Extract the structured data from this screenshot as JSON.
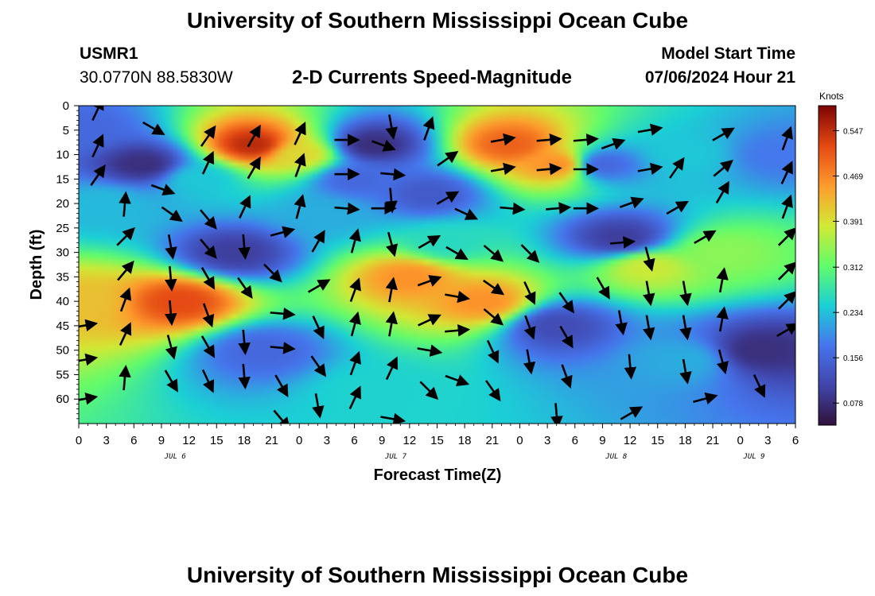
{
  "page": {
    "title": "University of Southern Mississippi Ocean Cube",
    "station": "USMR1",
    "coords": "30.0770N  88.5830W",
    "subtitle": "2-D Currents Speed-Magnitude",
    "model_start_label": "Model Start Time",
    "model_start_value": "07/06/2024 Hour 21",
    "footer_title": "University of Southern Mississippi Ocean Cube"
  },
  "chart_data": {
    "type": "heatmap",
    "title": "2-D Currents Speed-Magnitude",
    "xlabel": "Forecast Time(Z)",
    "ylabel": "Depth (ft)",
    "colorbar_label": "Knots",
    "colorbar_ticks": [
      "0.547",
      "0.469",
      "0.391",
      "0.312",
      "0.234",
      "0.156",
      "0.078"
    ],
    "colorbar_values": [
      0.547,
      0.469,
      0.391,
      0.312,
      0.234,
      0.156,
      0.078
    ],
    "colorbar_range": [
      0.04,
      0.59
    ],
    "colors": [
      "#30123b",
      "#4145ab",
      "#4675ed",
      "#1bd0d5",
      "#62fc6b",
      "#d2e935",
      "#fe9b2d",
      "#e54813",
      "#7a0403"
    ],
    "x_tick_labels": [
      "0",
      "3",
      "6",
      "9",
      "12",
      "15",
      "18",
      "21",
      "0",
      "3",
      "6",
      "9",
      "12",
      "15",
      "18",
      "21",
      "0",
      "3",
      "6",
      "9",
      "12",
      "15",
      "18",
      "21",
      "0",
      "3",
      "6"
    ],
    "x_range_hours": [
      0,
      78
    ],
    "date_labels": [
      {
        "text": "JUL 6",
        "hour": 10.5
      },
      {
        "text": "JUL 7",
        "hour": 34.5
      },
      {
        "text": "JUL 8",
        "hour": 58.5
      },
      {
        "text": "JUL 9",
        "hour": 73.5
      }
    ],
    "y_tick_labels": [
      "0",
      "5",
      "10",
      "15",
      "20",
      "25",
      "30",
      "35",
      "40",
      "45",
      "50",
      "55",
      "60"
    ],
    "y_range_ft": [
      0,
      65
    ],
    "grid": false,
    "legend": "right colorbar",
    "speed_field": [
      {
        "hour": 0,
        "depth": 5,
        "speed": 0.16
      },
      {
        "hour": 3,
        "depth": 20,
        "speed": 0.23
      },
      {
        "hour": 0,
        "depth": 40,
        "speed": 0.42
      },
      {
        "hour": 7,
        "depth": 12,
        "speed": 0.08
      },
      {
        "hour": 11,
        "depth": 40,
        "speed": 0.52
      },
      {
        "hour": 13,
        "depth": 15,
        "speed": 0.24
      },
      {
        "hour": 17,
        "depth": 30,
        "speed": 0.1
      },
      {
        "hour": 19,
        "depth": 8,
        "speed": 0.55
      },
      {
        "hour": 24,
        "depth": 10,
        "speed": 0.4
      },
      {
        "hour": 20,
        "depth": 50,
        "speed": 0.16
      },
      {
        "hour": 27,
        "depth": 22,
        "speed": 0.22
      },
      {
        "hour": 30,
        "depth": 15,
        "speed": 0.16
      },
      {
        "hour": 32,
        "depth": 8,
        "speed": 0.08
      },
      {
        "hour": 36,
        "depth": 35,
        "speed": 0.46
      },
      {
        "hour": 38,
        "depth": 18,
        "speed": 0.14
      },
      {
        "hour": 32,
        "depth": 58,
        "speed": 0.25
      },
      {
        "hour": 40,
        "depth": 28,
        "speed": 0.26
      },
      {
        "hour": 44,
        "depth": 40,
        "speed": 0.46
      },
      {
        "hour": 47,
        "depth": 8,
        "speed": 0.5
      },
      {
        "hour": 52,
        "depth": 12,
        "speed": 0.46
      },
      {
        "hour": 52,
        "depth": 45,
        "speed": 0.12
      },
      {
        "hour": 57,
        "depth": 12,
        "speed": 0.16
      },
      {
        "hour": 59,
        "depth": 27,
        "speed": 0.1
      },
      {
        "hour": 62,
        "depth": 33,
        "speed": 0.38
      },
      {
        "hour": 66,
        "depth": 10,
        "speed": 0.24
      },
      {
        "hour": 66,
        "depth": 52,
        "speed": 0.22
      },
      {
        "hour": 74,
        "depth": 50,
        "speed": 0.08
      },
      {
        "hour": 76,
        "depth": 10,
        "speed": 0.18
      },
      {
        "hour": 70,
        "depth": 30,
        "speed": 0.34
      }
    ],
    "vectors": [
      {
        "hour": 2,
        "depth": 1.0,
        "angle": 25
      },
      {
        "hour": 2,
        "depth": 8.5,
        "angle": 25
      },
      {
        "hour": 2,
        "depth": 14.5,
        "angle": 35
      },
      {
        "hour": 5,
        "depth": 20.5,
        "angle": 5
      },
      {
        "hour": 8,
        "depth": 4.5,
        "angle": 120
      },
      {
        "hour": 9,
        "depth": 17,
        "angle": 110
      },
      {
        "hour": 10,
        "depth": 22,
        "angle": 125
      },
      {
        "hour": 5,
        "depth": 27,
        "angle": 45
      },
      {
        "hour": 10,
        "depth": 28.5,
        "angle": 170
      },
      {
        "hour": 14,
        "depth": 29,
        "angle": 140
      },
      {
        "hour": 5,
        "depth": 34,
        "angle": 40
      },
      {
        "hour": 10,
        "depth": 35,
        "angle": 175
      },
      {
        "hour": 14,
        "depth": 35,
        "angle": 150
      },
      {
        "hour": 5,
        "depth": 40,
        "angle": 20
      },
      {
        "hour": 10,
        "depth": 42,
        "angle": 175
      },
      {
        "hour": 14,
        "depth": 42.5,
        "angle": 160
      },
      {
        "hour": 5,
        "depth": 47,
        "angle": 25
      },
      {
        "hour": 10,
        "depth": 49,
        "angle": 165
      },
      {
        "hour": 14,
        "depth": 49,
        "angle": 150
      },
      {
        "hour": 5,
        "depth": 56,
        "angle": 5
      },
      {
        "hour": 10,
        "depth": 56,
        "angle": 150
      },
      {
        "hour": 14,
        "depth": 56,
        "angle": 155
      },
      {
        "hour": 0.5,
        "depth": 45,
        "angle": 80
      },
      {
        "hour": 0.5,
        "depth": 52,
        "angle": 80
      },
      {
        "hour": 0.5,
        "depth": 60,
        "angle": 80
      },
      {
        "hour": 14,
        "depth": 23,
        "angle": 140
      },
      {
        "hour": 19,
        "depth": 6.5,
        "angle": 30
      },
      {
        "hour": 24,
        "depth": 6,
        "angle": 25
      },
      {
        "hour": 14,
        "depth": 12,
        "angle": 25
      },
      {
        "hour": 19,
        "depth": 13,
        "angle": 30
      },
      {
        "hour": 24,
        "depth": 12.5,
        "angle": 20
      },
      {
        "hour": 14,
        "depth": 6.5,
        "angle": 35
      },
      {
        "hour": 18,
        "depth": 21,
        "angle": 25
      },
      {
        "hour": 24,
        "depth": 21,
        "angle": 15
      },
      {
        "hour": 18,
        "depth": 28.5,
        "angle": 175
      },
      {
        "hour": 22,
        "depth": 26,
        "angle": 75
      },
      {
        "hour": 21,
        "depth": 34,
        "angle": 135
      },
      {
        "hour": 18,
        "depth": 37,
        "angle": 145
      },
      {
        "hour": 18,
        "depth": 48,
        "angle": 175
      },
      {
        "hour": 18,
        "depth": 55,
        "angle": 175
      },
      {
        "hour": 22,
        "depth": 42.5,
        "angle": 95
      },
      {
        "hour": 22,
        "depth": 49.5,
        "angle": 95
      },
      {
        "hour": 22,
        "depth": 57,
        "angle": 150
      },
      {
        "hour": 22,
        "depth": 64,
        "angle": 140
      },
      {
        "hour": 29,
        "depth": 7,
        "angle": 90
      },
      {
        "hour": 29,
        "depth": 14,
        "angle": 90
      },
      {
        "hour": 29,
        "depth": 21,
        "angle": 95
      },
      {
        "hour": 33,
        "depth": 8,
        "angle": 110
      },
      {
        "hour": 34,
        "depth": 14,
        "angle": 95
      },
      {
        "hour": 33,
        "depth": 21,
        "angle": 90
      },
      {
        "hour": 34,
        "depth": 4,
        "angle": 170
      },
      {
        "hour": 34,
        "depth": 19,
        "angle": 175
      },
      {
        "hour": 26,
        "depth": 28,
        "angle": 30
      },
      {
        "hour": 30,
        "depth": 28,
        "angle": 15
      },
      {
        "hour": 34,
        "depth": 28,
        "angle": 165
      },
      {
        "hour": 26,
        "depth": 37,
        "angle": 60
      },
      {
        "hour": 30,
        "depth": 38,
        "angle": 20
      },
      {
        "hour": 34,
        "depth": 38,
        "angle": 10
      },
      {
        "hour": 26,
        "depth": 45,
        "angle": 155
      },
      {
        "hour": 30,
        "depth": 45,
        "angle": 15
      },
      {
        "hour": 34,
        "depth": 45,
        "angle": 10
      },
      {
        "hour": 26,
        "depth": 53,
        "angle": 145
      },
      {
        "hour": 30,
        "depth": 53,
        "angle": 20
      },
      {
        "hour": 34,
        "depth": 54,
        "angle": 25
      },
      {
        "hour": 26,
        "depth": 61,
        "angle": 170
      },
      {
        "hour": 30,
        "depth": 60,
        "angle": 25
      },
      {
        "hour": 34,
        "depth": 64,
        "angle": 100
      },
      {
        "hour": 38,
        "depth": 5,
        "angle": 20
      },
      {
        "hour": 40,
        "depth": 11,
        "angle": 55
      },
      {
        "hour": 40,
        "depth": 19,
        "angle": 60
      },
      {
        "hour": 38,
        "depth": 28,
        "angle": 60
      },
      {
        "hour": 38,
        "depth": 36,
        "angle": 70
      },
      {
        "hour": 38,
        "depth": 44,
        "angle": 65
      },
      {
        "hour": 38,
        "depth": 50,
        "angle": 100
      },
      {
        "hour": 38,
        "depth": 58,
        "angle": 135
      },
      {
        "hour": 42,
        "depth": 22,
        "angle": 115
      },
      {
        "hour": 41,
        "depth": 30,
        "angle": 120
      },
      {
        "hour": 41,
        "depth": 39,
        "angle": 100
      },
      {
        "hour": 41,
        "depth": 46,
        "angle": 85
      },
      {
        "hour": 41,
        "depth": 56,
        "angle": 110
      },
      {
        "hour": 46,
        "depth": 7,
        "angle": 80
      },
      {
        "hour": 51,
        "depth": 7,
        "angle": 85
      },
      {
        "hour": 55,
        "depth": 7,
        "angle": 85
      },
      {
        "hour": 46,
        "depth": 13,
        "angle": 80
      },
      {
        "hour": 51,
        "depth": 13,
        "angle": 85
      },
      {
        "hour": 55,
        "depth": 13,
        "angle": 90
      },
      {
        "hour": 47,
        "depth": 21,
        "angle": 95
      },
      {
        "hour": 52,
        "depth": 21,
        "angle": 85
      },
      {
        "hour": 55,
        "depth": 21,
        "angle": 90
      },
      {
        "hour": 45,
        "depth": 30,
        "angle": 130
      },
      {
        "hour": 45,
        "depth": 37,
        "angle": 125
      },
      {
        "hour": 45,
        "depth": 43,
        "angle": 130
      },
      {
        "hour": 45,
        "depth": 50,
        "angle": 155
      },
      {
        "hour": 45,
        "depth": 58,
        "angle": 145
      },
      {
        "hour": 49,
        "depth": 30,
        "angle": 135
      },
      {
        "hour": 49,
        "depth": 38,
        "angle": 155
      },
      {
        "hour": 49,
        "depth": 45,
        "angle": 160
      },
      {
        "hour": 49,
        "depth": 52,
        "angle": 170
      },
      {
        "hour": 52,
        "depth": 63,
        "angle": 175
      },
      {
        "hour": 53,
        "depth": 40,
        "angle": 145
      },
      {
        "hour": 53,
        "depth": 47,
        "angle": 150
      },
      {
        "hour": 53,
        "depth": 55,
        "angle": 160
      },
      {
        "hour": 58,
        "depth": 8,
        "angle": 70
      },
      {
        "hour": 62,
        "depth": 5,
        "angle": 80
      },
      {
        "hour": 62,
        "depth": 13,
        "angle": 80
      },
      {
        "hour": 60,
        "depth": 20,
        "angle": 70
      },
      {
        "hour": 59,
        "depth": 28,
        "angle": 85
      },
      {
        "hour": 57,
        "depth": 37,
        "angle": 150
      },
      {
        "hour": 59,
        "depth": 44,
        "angle": 170
      },
      {
        "hour": 60,
        "depth": 53,
        "angle": 175
      },
      {
        "hour": 62,
        "depth": 31,
        "angle": 165
      },
      {
        "hour": 62,
        "depth": 38,
        "angle": 170
      },
      {
        "hour": 62,
        "depth": 45,
        "angle": 170
      },
      {
        "hour": 60,
        "depth": 63,
        "angle": 60
      },
      {
        "hour": 65,
        "depth": 13,
        "angle": 35
      },
      {
        "hour": 65,
        "depth": 21,
        "angle": 60
      },
      {
        "hour": 66,
        "depth": 38,
        "angle": 170
      },
      {
        "hour": 66,
        "depth": 45,
        "angle": 170
      },
      {
        "hour": 66,
        "depth": 54,
        "angle": 170
      },
      {
        "hour": 68,
        "depth": 27,
        "angle": 60
      },
      {
        "hour": 68,
        "depth": 60,
        "angle": 75
      },
      {
        "hour": 70,
        "depth": 6,
        "angle": 60
      },
      {
        "hour": 70,
        "depth": 13,
        "angle": 50
      },
      {
        "hour": 70,
        "depth": 18,
        "angle": 30
      },
      {
        "hour": 70,
        "depth": 36,
        "angle": 10
      },
      {
        "hour": 70,
        "depth": 44,
        "angle": 10
      },
      {
        "hour": 70,
        "depth": 52,
        "angle": 165
      },
      {
        "hour": 74,
        "depth": 57,
        "angle": 155
      },
      {
        "hour": 77,
        "depth": 7,
        "angle": 20
      },
      {
        "hour": 77,
        "depth": 14,
        "angle": 25
      },
      {
        "hour": 77,
        "depth": 21,
        "angle": 20
      },
      {
        "hour": 77,
        "depth": 27,
        "angle": 45
      },
      {
        "hour": 77,
        "depth": 34,
        "angle": 45
      },
      {
        "hour": 77,
        "depth": 40,
        "angle": 45
      },
      {
        "hour": 77,
        "depth": 46,
        "angle": 60
      }
    ]
  }
}
